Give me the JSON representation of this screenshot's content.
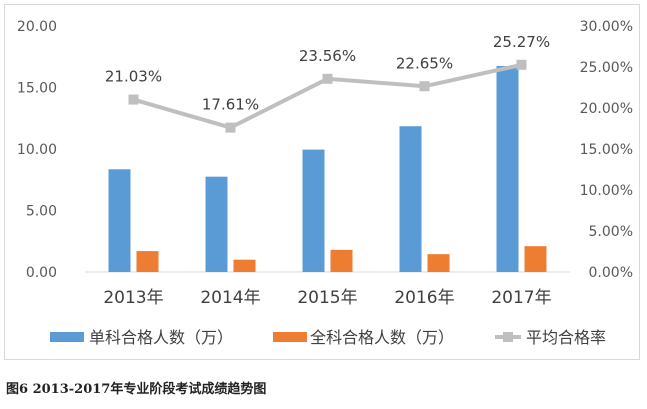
{
  "chart_data": {
    "type": "bar",
    "categories": [
      "2013年",
      "2014年",
      "2015年",
      "2016年",
      "2017年"
    ],
    "series": [
      {
        "name": "单科合格人数（万）",
        "type": "bar",
        "axis": "left",
        "color": "#5b9bd5",
        "values": [
          8.35,
          7.75,
          9.95,
          11.85,
          16.75
        ]
      },
      {
        "name": "全科合格人数（万）",
        "type": "bar",
        "axis": "left",
        "color": "#ed7d31",
        "values": [
          1.7,
          1.0,
          1.8,
          1.45,
          2.1
        ]
      },
      {
        "name": "平均合格率",
        "type": "line",
        "axis": "right",
        "color": "#bfbfbf",
        "values": [
          21.03,
          17.61,
          23.56,
          22.65,
          25.27
        ],
        "labels": [
          "21.03%",
          "17.61%",
          "23.56%",
          "22.65%",
          "25.27%"
        ]
      }
    ],
    "y_left": {
      "ylim": [
        0,
        20
      ],
      "ticks": [
        "0.00",
        "5.00",
        "10.00",
        "15.00",
        "20.00"
      ],
      "values": [
        0,
        5,
        10,
        15,
        20
      ]
    },
    "y_right": {
      "ylim": [
        0,
        30
      ],
      "ticks": [
        "0.00%",
        "5.00%",
        "10.00%",
        "15.00%",
        "20.00%",
        "25.00%",
        "30.00%"
      ],
      "values": [
        0,
        5,
        10,
        15,
        20,
        25,
        30
      ]
    },
    "grid": false,
    "legend_position": "bottom",
    "title": "",
    "xlabel": "",
    "ylabel": ""
  },
  "caption": "图6  2013-2017年专业阶段考试成绩趋势图"
}
